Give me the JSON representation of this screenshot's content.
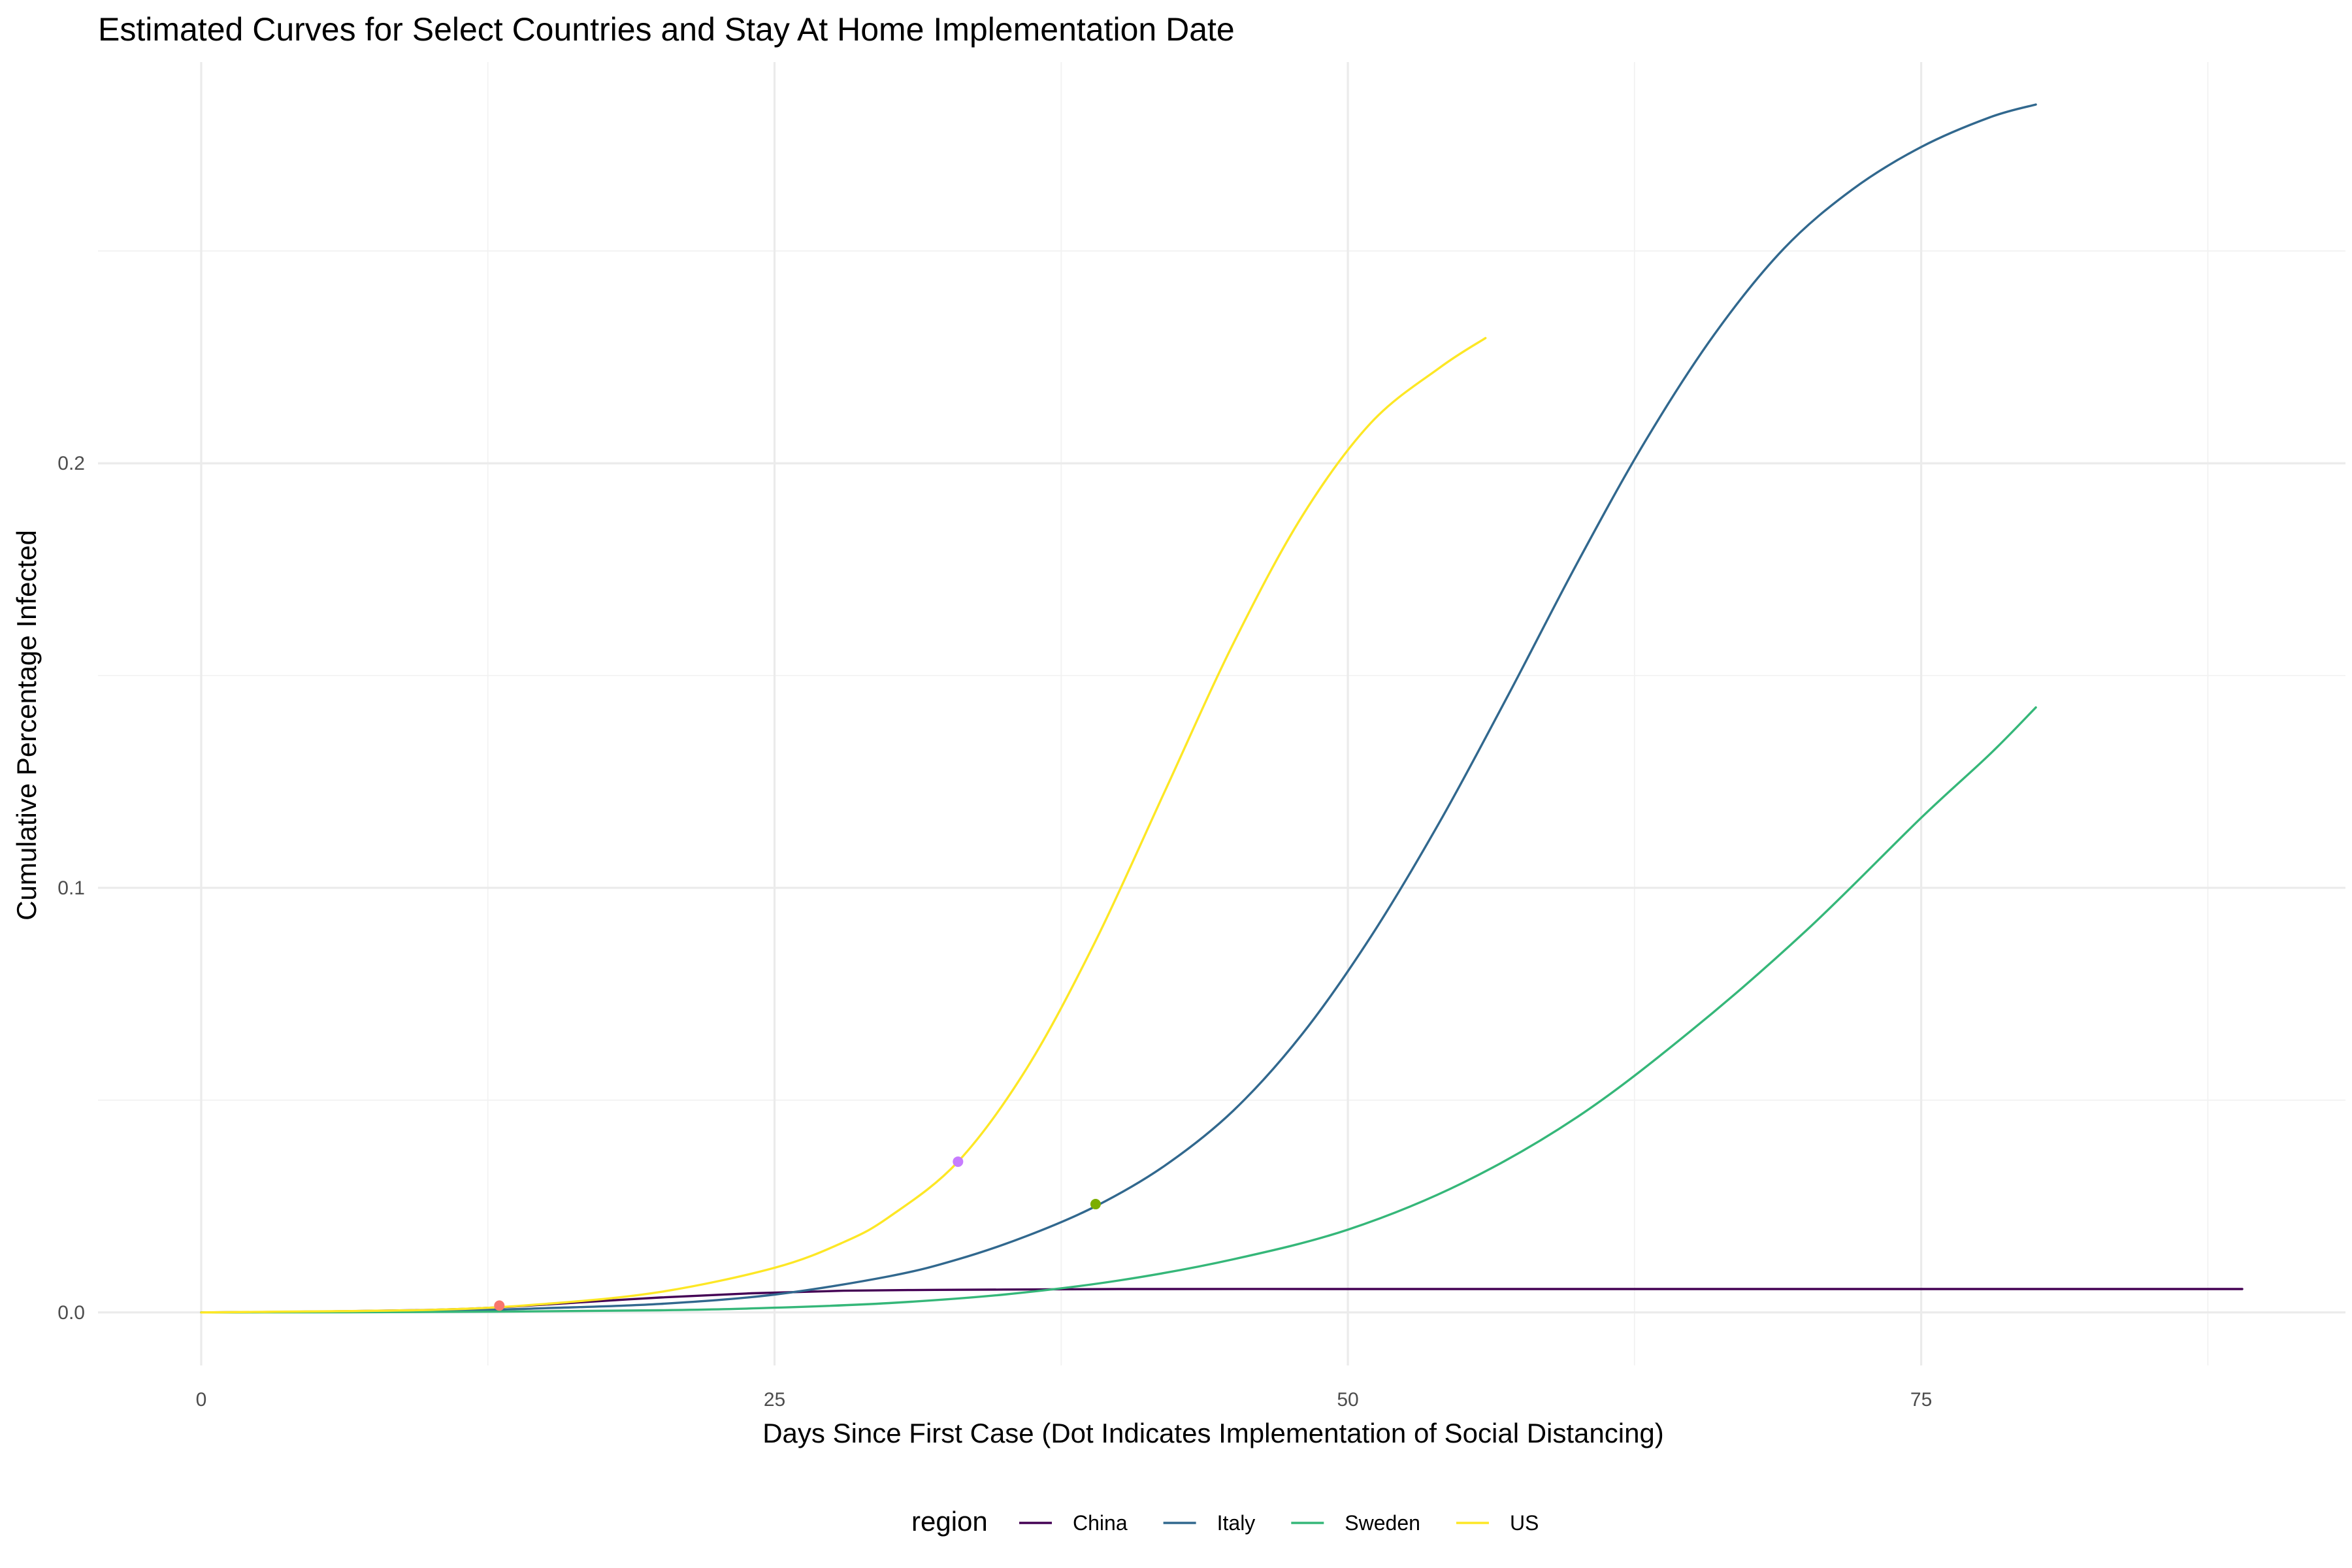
{
  "chart_data": {
    "type": "line",
    "title": "Estimated Curves for Select Countries and Stay At Home Implementation Date",
    "xlabel": "Days Since First Case (Dot Indicates Implementation of Social Distancing)",
    "ylabel": "Cumulative Percentage Infected",
    "xlim": [
      -4.5,
      93.5
    ],
    "ylim": [
      -0.0125,
      0.2945
    ],
    "x_ticks": [
      0,
      25,
      50,
      75
    ],
    "x_tick_labels": [
      "0",
      "25",
      "50",
      "75"
    ],
    "x_minor_ticks": [
      12.5,
      37.5,
      62.5,
      87.5
    ],
    "y_ticks": [
      0.0,
      0.1,
      0.2
    ],
    "y_tick_labels": [
      "0.0",
      "0.1",
      "0.2"
    ],
    "y_minor_ticks": [
      0.05,
      0.15,
      0.25
    ],
    "grid": true,
    "legend": {
      "title": "region",
      "position": "bottom"
    },
    "series": [
      {
        "name": "China",
        "color": "#440154",
        "x": [
          0,
          5,
          10,
          13,
          16,
          20,
          24,
          28,
          32,
          36,
          40,
          50,
          60,
          70,
          80,
          89
        ],
        "y": [
          0.0,
          0.0002,
          0.0006,
          0.0012,
          0.0022,
          0.0035,
          0.0045,
          0.0051,
          0.0053,
          0.0054,
          0.0055,
          0.0055,
          0.0055,
          0.0055,
          0.0055,
          0.0055
        ]
      },
      {
        "name": "Italy",
        "color": "#31688E",
        "x": [
          0,
          10,
          15,
          20,
          25,
          30,
          33,
          36,
          39,
          42,
          45,
          48,
          51,
          54,
          57,
          60,
          63,
          66,
          69,
          72,
          75,
          78,
          80
        ],
        "y": [
          0.0,
          0.0003,
          0.001,
          0.002,
          0.0042,
          0.0085,
          0.0125,
          0.018,
          0.025,
          0.0345,
          0.0475,
          0.0655,
          0.0885,
          0.1155,
          0.1455,
          0.1765,
          0.2055,
          0.2305,
          0.2505,
          0.2645,
          0.2745,
          0.2815,
          0.2845
        ]
      },
      {
        "name": "Sweden",
        "color": "#35B779",
        "x": [
          0,
          10,
          20,
          25,
          30,
          35,
          40,
          45,
          50,
          55,
          60,
          65,
          70,
          75,
          78,
          80
        ],
        "y": [
          0.0,
          0.0001,
          0.0005,
          0.0011,
          0.0022,
          0.0042,
          0.0075,
          0.0125,
          0.0195,
          0.0305,
          0.046,
          0.0665,
          0.09,
          0.1165,
          0.1315,
          0.1425
        ]
      },
      {
        "name": "US",
        "color": "#FDE725",
        "x": [
          0,
          10,
          15,
          20,
          25,
          28,
          30,
          33,
          36,
          39,
          42,
          45,
          48,
          51,
          54,
          56
        ],
        "y": [
          0.0,
          0.0006,
          0.002,
          0.0048,
          0.0105,
          0.0165,
          0.0225,
          0.0355,
          0.0575,
          0.0875,
          0.1225,
          0.1575,
          0.1875,
          0.2095,
          0.2225,
          0.2295
        ]
      }
    ],
    "implementation_dots": [
      {
        "x": 13,
        "y": 0.0016,
        "color": "#F8766D"
      },
      {
        "x": 33,
        "y": 0.0355,
        "color": "#C77CFF"
      },
      {
        "x": 39,
        "y": 0.0255,
        "color": "#7CAE00"
      }
    ]
  }
}
